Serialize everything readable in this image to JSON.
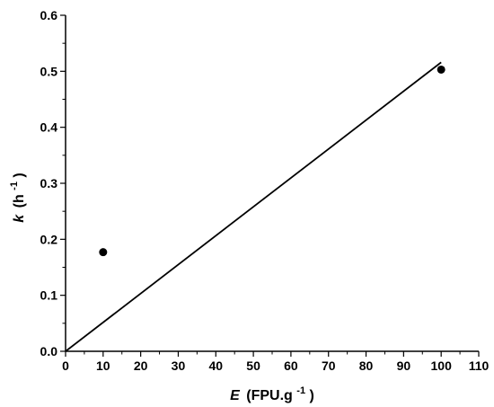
{
  "chart_data": {
    "type": "scatter",
    "title": "",
    "xlabel": {
      "var": "E",
      "unit_main": "(FPU.g",
      "unit_sup": "-1",
      "unit_close": ")"
    },
    "ylabel": {
      "var": "k",
      "unit_main": "(h",
      "unit_sup": "-1",
      "unit_close": ")"
    },
    "xlim": [
      0,
      110
    ],
    "ylim": [
      0,
      0.6
    ],
    "x_ticks": [
      "0",
      "10",
      "20",
      "30",
      "40",
      "50",
      "60",
      "70",
      "80",
      "90",
      "100",
      "110"
    ],
    "y_ticks": [
      "0.0",
      "0.1",
      "0.2",
      "0.3",
      "0.4",
      "0.5",
      "0.6"
    ],
    "grid": false,
    "series": [
      {
        "type": "scatter",
        "x": [
          10,
          100
        ],
        "y": [
          0.177,
          0.503
        ]
      },
      {
        "type": "line",
        "x": [
          0,
          100
        ],
        "y": [
          0,
          0.516
        ]
      }
    ]
  }
}
